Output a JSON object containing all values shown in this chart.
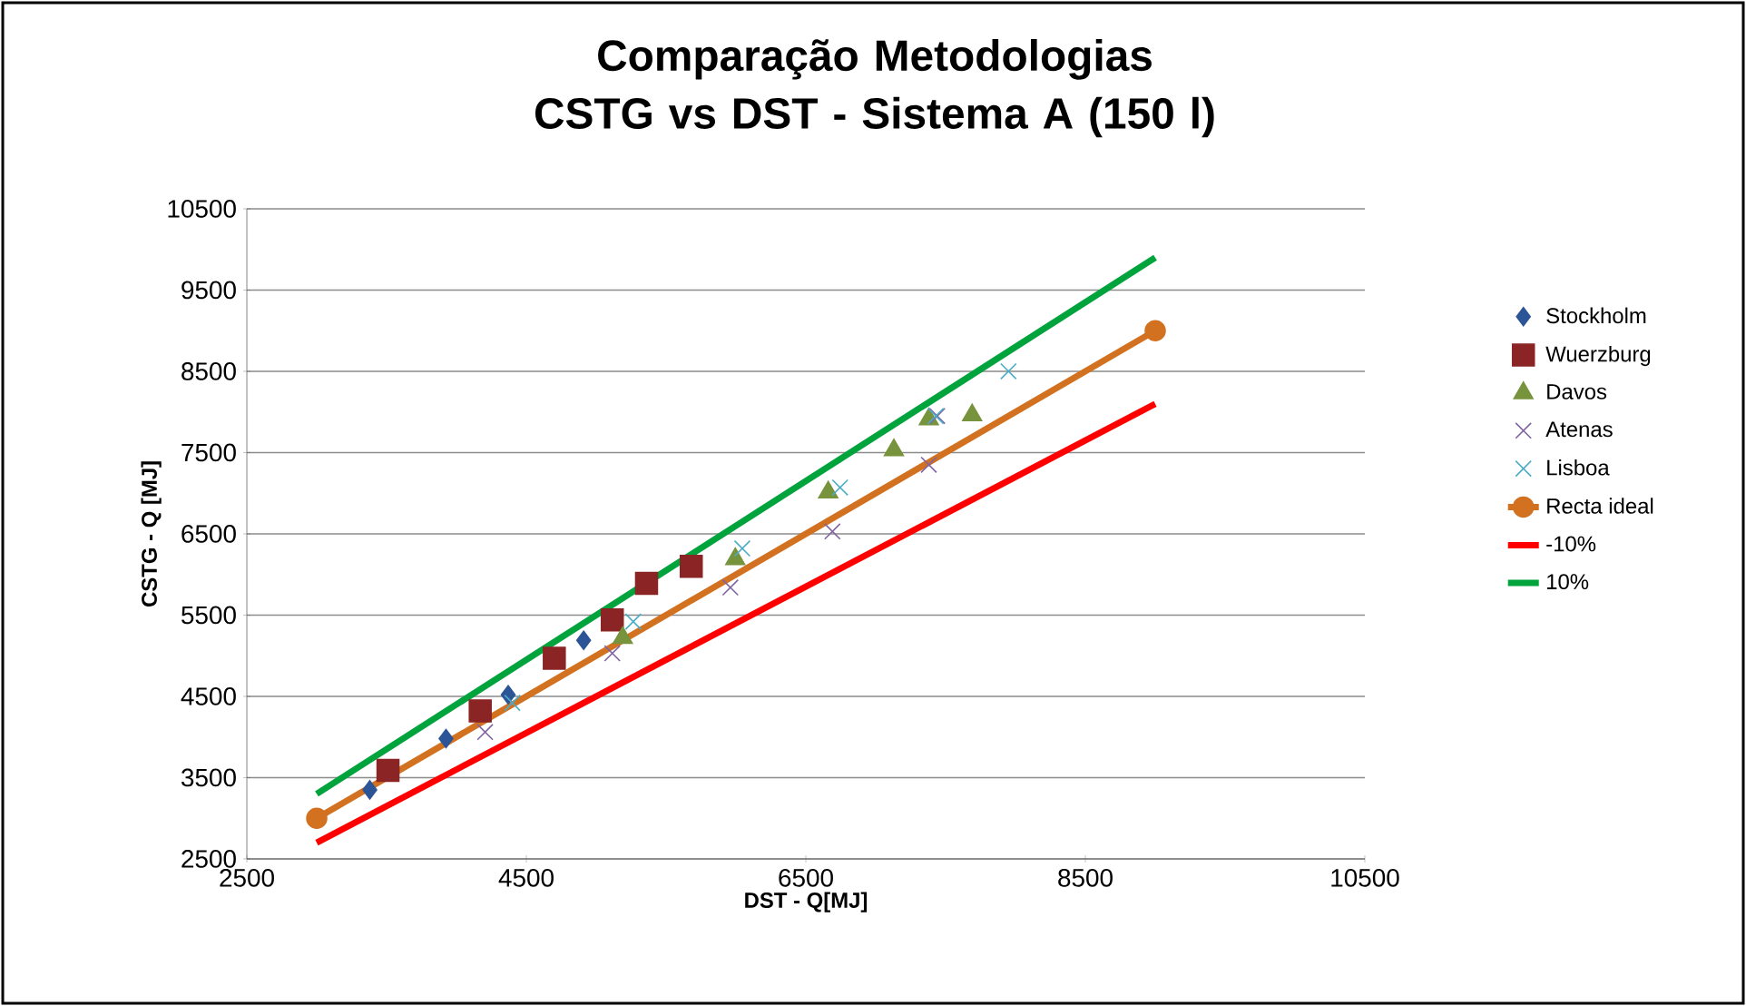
{
  "chart_data": {
    "type": "scatter",
    "title": "Comparação Metodologias CSTG vs DST - Sistema A (150 l)",
    "xlabel": "DST - Q[MJ]",
    "ylabel": "CSTG - Q [MJ]",
    "xlim": [
      2500,
      10500
    ],
    "xticks": [
      2500,
      4500,
      6500,
      8500,
      10500
    ],
    "ylim": [
      2500,
      10500
    ],
    "yticks": [
      2500,
      3500,
      4500,
      5500,
      6500,
      7500,
      8500,
      9500,
      10500
    ],
    "grid": "y",
    "legend": "right",
    "series": [
      {
        "name": "Stockholm",
        "color": "#2c5597",
        "marker": "diamond",
        "x": [
          3380,
          3925,
          4370,
          4910
        ],
        "values": [
          3350,
          3980,
          4520,
          5190
        ]
      },
      {
        "name": "Wuerzburg",
        "color": "#8b2525",
        "marker": "square",
        "x": [
          3510,
          4170,
          4700,
          5115,
          5360,
          5680
        ],
        "values": [
          3590,
          4320,
          4970,
          5440,
          5890,
          6100
        ]
      },
      {
        "name": "Davos",
        "color": "#77933c",
        "marker": "triangle",
        "x": [
          5190,
          5995,
          6660,
          7130,
          7380,
          7690
        ],
        "values": [
          5220,
          6190,
          7010,
          7530,
          7910,
          7960
        ]
      },
      {
        "name": "Atenas",
        "color": "#8064a2",
        "marker": "cross",
        "x": [
          4205,
          5115,
          5960,
          6690,
          7380,
          7440
        ],
        "values": [
          4060,
          5030,
          5840,
          6530,
          7350,
          7950
        ]
      },
      {
        "name": "Lisboa",
        "color": "#4bacc6",
        "marker": "cross",
        "x": [
          4400,
          5265,
          6045,
          6745,
          7430,
          7950
        ],
        "values": [
          4420,
          5420,
          6320,
          7070,
          7950,
          8500
        ]
      },
      {
        "name": "Recta ideal",
        "type": "line",
        "color": "#d2711f",
        "marker": "circle",
        "x": [
          3000,
          9000
        ],
        "values": [
          3000,
          9000
        ]
      },
      {
        "name": "-10%",
        "type": "line",
        "color": "#ff0000",
        "marker": "none",
        "x": [
          3000,
          9000
        ],
        "values": [
          2700,
          8100
        ]
      },
      {
        "name": "10%",
        "type": "line",
        "color": "#00a33c",
        "marker": "none",
        "x": [
          3000,
          9000
        ],
        "values": [
          3300,
          9900
        ]
      }
    ]
  }
}
